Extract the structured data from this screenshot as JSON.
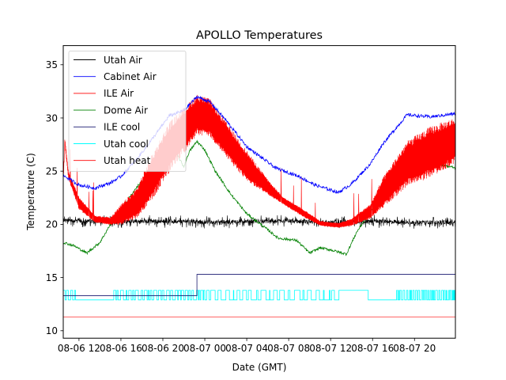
{
  "chart_data": {
    "type": "line",
    "title": "APOLLO Temperatures",
    "xlabel": "Date (GMT)",
    "ylabel": "Temperature (C)",
    "x_unit": "hours since 08-06 00:00 GMT",
    "xlim": [
      10.5,
      47.9
    ],
    "ylim": [
      9.3,
      36.8
    ],
    "grid": false,
    "legend_position": "top-left",
    "x_ticks": [
      {
        "value": 12,
        "label": "08-06 12"
      },
      {
        "value": 16,
        "label": "08-06 16"
      },
      {
        "value": 20,
        "label": "08-06 20"
      },
      {
        "value": 24,
        "label": "08-07 00"
      },
      {
        "value": 28,
        "label": "08-07 04"
      },
      {
        "value": 32,
        "label": "08-07 08"
      },
      {
        "value": 36,
        "label": "08-07 12"
      },
      {
        "value": 40,
        "label": "08-07 16"
      },
      {
        "value": 44,
        "label": "08-07 20"
      }
    ],
    "y_ticks": [
      {
        "value": 10,
        "label": "10"
      },
      {
        "value": 15,
        "label": "15"
      },
      {
        "value": 20,
        "label": "20"
      },
      {
        "value": 25,
        "label": "25"
      },
      {
        "value": 30,
        "label": "30"
      },
      {
        "value": 35,
        "label": "35"
      }
    ],
    "series": [
      {
        "name": "Utah Air",
        "color": "#000000",
        "x": [
          10.5,
          12,
          16,
          20,
          24,
          28,
          32,
          36,
          40,
          44,
          47.9
        ],
        "values": [
          20.4,
          20.3,
          20.3,
          20.3,
          20.2,
          20.3,
          20.3,
          20.2,
          20.3,
          20.2,
          20.2
        ],
        "noise_amplitude": 0.6
      },
      {
        "name": "Cabinet Air",
        "color": "#0000ff",
        "x": [
          10.5,
          12,
          13.5,
          15,
          16,
          17.5,
          19.5,
          20.6,
          22,
          23.25,
          24.5,
          26,
          28,
          30.75,
          33,
          34.5,
          36.75,
          38,
          39.8,
          41,
          43.3,
          45.5,
          47.9
        ],
        "values": [
          24.6,
          23.7,
          23.4,
          23.9,
          24.5,
          26.1,
          28.7,
          30.2,
          30.7,
          32.0,
          31.5,
          29.8,
          27.3,
          25.3,
          24.5,
          23.7,
          23.0,
          23.8,
          25.7,
          27.6,
          30.3,
          30.1,
          30.4
        ],
        "noise_amplitude": 0.15
      },
      {
        "name": "ILE Air",
        "color": "#ff0000",
        "x": [
          10.5,
          10.65,
          11,
          12,
          13.5,
          15,
          16,
          17.5,
          19,
          20.6,
          22,
          23.25,
          24.5,
          26,
          28,
          30,
          31.5,
          33.5,
          35,
          36.75,
          38,
          39.8,
          41,
          43.3,
          45.5,
          47.9
        ],
        "values": [
          24.0,
          27.8,
          24.6,
          22.0,
          20.5,
          20.3,
          20.9,
          22.0,
          24.5,
          27.2,
          28.8,
          30.3,
          30.0,
          28.0,
          25.5,
          23.5,
          22.2,
          21.0,
          20.1,
          19.9,
          20.2,
          21.2,
          23.0,
          25.7,
          26.8,
          27.9
        ],
        "band_amplitude": [
          0.3,
          0.3,
          0.3,
          0.5,
          0.3,
          0.3,
          0.8,
          1.2,
          1.8,
          2.0,
          1.8,
          1.6,
          1.5,
          1.4,
          1.2,
          0.6,
          0.3,
          0.3,
          0.2,
          0.2,
          0.3,
          0.6,
          1.2,
          1.8,
          2.0,
          1.8
        ]
      },
      {
        "name": "Dome Air",
        "color": "#008000",
        "x": [
          10.5,
          11.5,
          12.75,
          14,
          15,
          16,
          17.5,
          19,
          20.5,
          21,
          22,
          22.5,
          23.25,
          24,
          25,
          26.5,
          28,
          30,
          31,
          32.75,
          34,
          35,
          36,
          37.5,
          38.5,
          39.8,
          41,
          42,
          43.3,
          44.5,
          45.5,
          46.5,
          47.9
        ],
        "values": [
          18.3,
          18.0,
          17.3,
          18.3,
          20.0,
          21.3,
          23.5,
          25.0,
          26.8,
          27.2,
          25.4,
          26.8,
          27.8,
          27.0,
          25.0,
          22.8,
          21.0,
          19.5,
          18.7,
          18.5,
          17.3,
          17.8,
          17.6,
          17.2,
          19.3,
          21.2,
          22.4,
          23.1,
          24.5,
          25.7,
          26.5,
          25.6,
          25.3
        ],
        "noise_amplitude": 0.12
      },
      {
        "name": "ILE cool",
        "color": "#191970",
        "x": [
          10.5,
          23.25,
          23.25,
          47.9
        ],
        "values": [
          13.3,
          13.3,
          15.3,
          15.3
        ]
      },
      {
        "name": "Utah cool",
        "color": "#00ffff",
        "low": 12.9,
        "high": 13.8,
        "x_range": [
          10.5,
          47.9
        ]
      },
      {
        "name": "Utah heat",
        "color": "#ff0000",
        "x": [
          10.5,
          47.9
        ],
        "values": [
          11.3,
          11.3
        ]
      }
    ]
  }
}
